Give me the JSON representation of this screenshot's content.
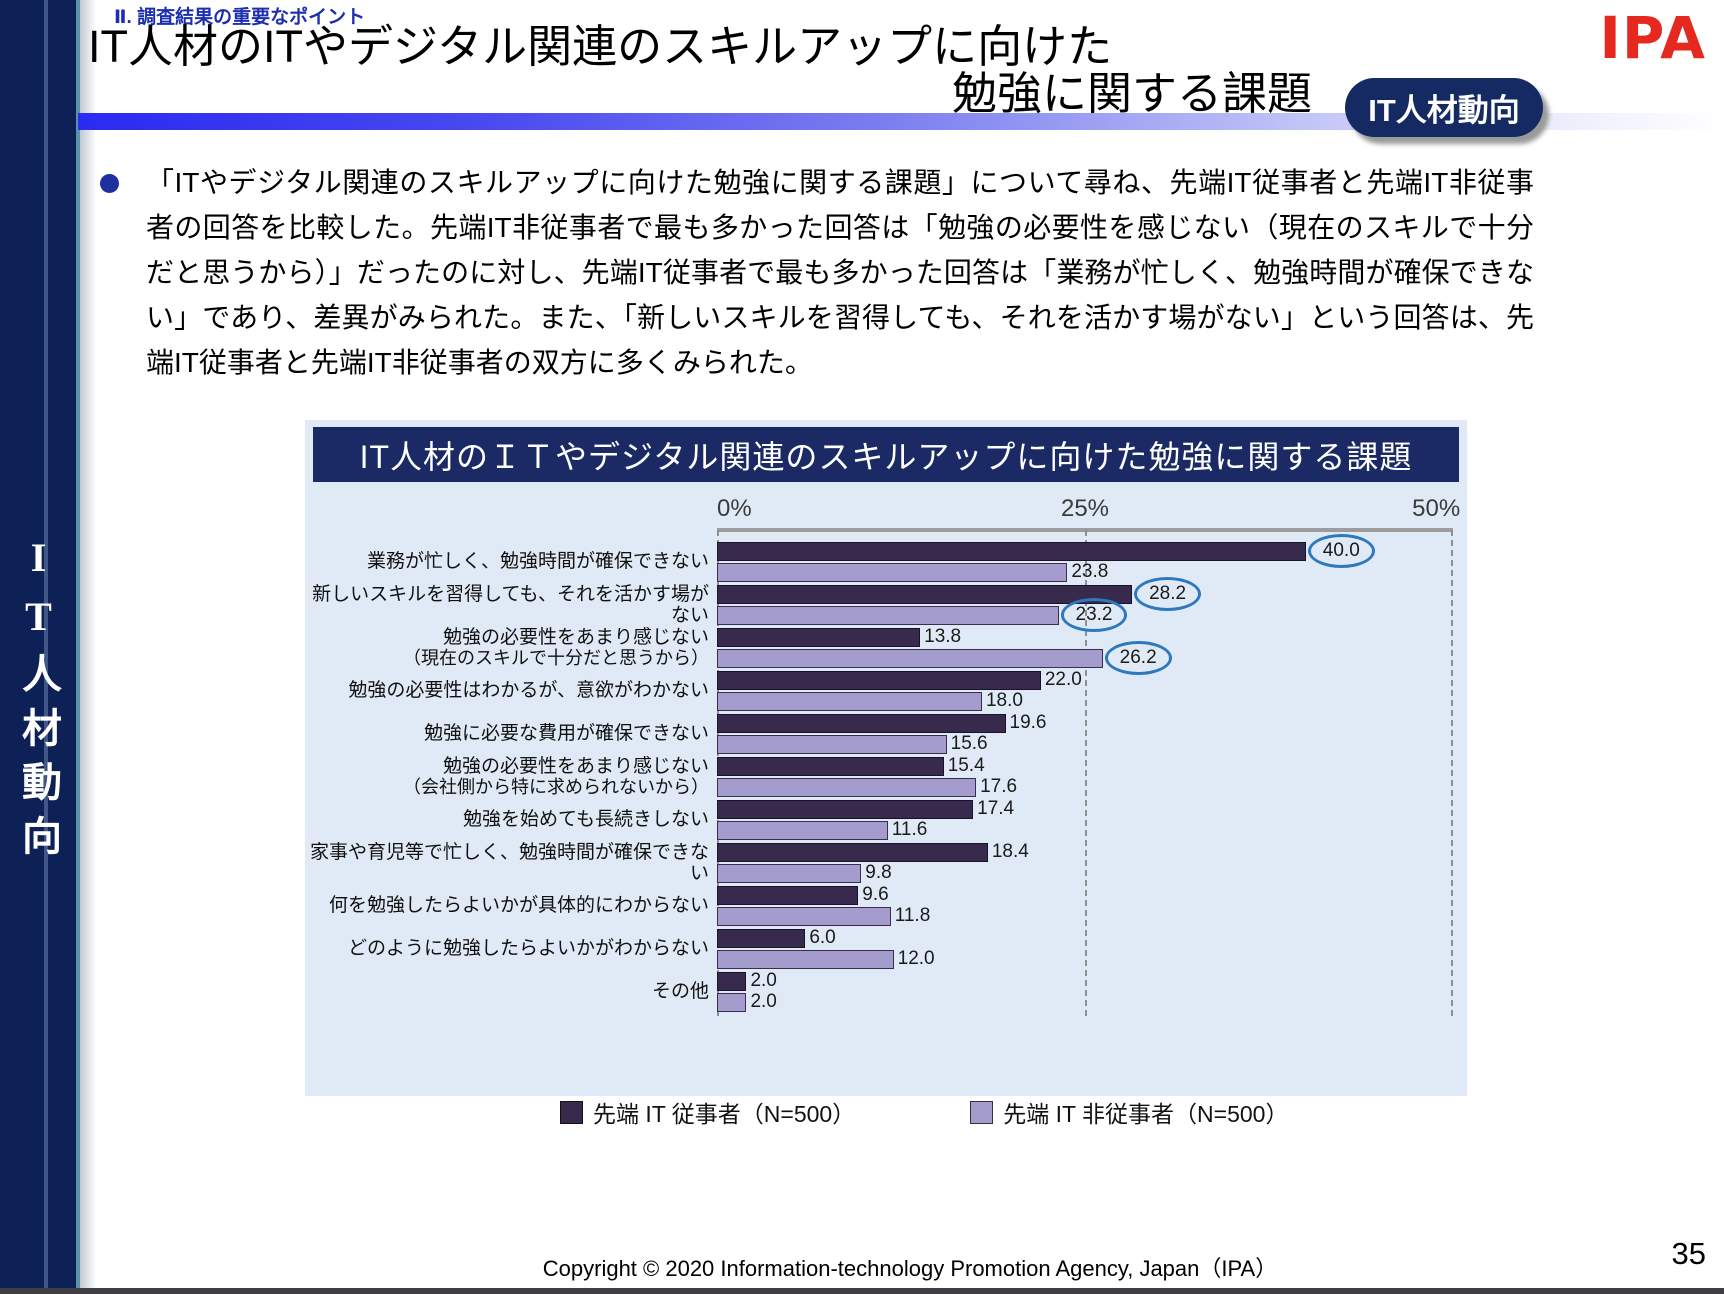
{
  "slide": {
    "eyebrow": "Ⅱ. 調査結果の重要なポイント",
    "title_line1": "IT人材のITやデジタル関連のスキルアップに向けた",
    "title_line2": "勉強に関する課題",
    "badge_label": "IT人材動向",
    "logo_text": "IPA",
    "sidebar_vertical_label": "IT人材動向",
    "bullet_paragraph": "「ITやデジタル関連のスキルアップに向けた勉強に関する課題」について尋ね、先端IT従事者と先端IT非従事者の回答を比較した。先端IT非従事者で最も多かった回答は「勉強の必要性を感じない（現在のスキルで十分だと思うから）」だったのに対し、先端IT従事者で最も多かった回答は「業務が忙しく、勉強時間が確保できない」であり、差異がみられた。また、「新しいスキルを習得しても、それを活かす場がない」という回答は、先端IT従事者と先端IT非従事者の双方に多くみられた。",
    "footer_copyright": "Copyright © 2020 Information-technology Promotion Agency, Japan（IPA）",
    "page_number": "35"
  },
  "colors": {
    "accent_blue": "#1c2fb0",
    "sidebar_navy": "#0d2156",
    "badge_navy": "#152a63",
    "logo_red": "#e6291f",
    "panel_bg": "#dfeaf6",
    "chart_title_bg": "#1b2a64",
    "series_dark": "#372a4d",
    "series_light": "#a49ccd",
    "circle_stroke": "#2e79bd"
  },
  "chart_data": {
    "type": "bar",
    "orientation": "horizontal",
    "title": "IT人材のＩＴやデジタル関連のスキルアップに向けた勉強に関する課題",
    "x_axis": {
      "ticks": [
        "0%",
        "25%",
        "50%"
      ],
      "min": 0,
      "max": 50,
      "unit": "%",
      "gridlines": "dashed"
    },
    "legend": [
      {
        "label": "先端 IT 従事者（N=500）",
        "color": "#372a4d"
      },
      {
        "label": "先端 IT 非従事者（N=500）",
        "color": "#a49ccd"
      }
    ],
    "categories": [
      "業務が忙しく、勉強時間が確保できない",
      "新しいスキルを習得しても、それを活かす場がない",
      "勉強の必要性をあまり感じない（現在のスキルで十分だと思うから）",
      "勉強の必要性はわかるが、意欲がわかない",
      "勉強に必要な費用が確保できない",
      "勉強の必要性をあまり感じない（会社側から特に求められないから）",
      "勉強を始めても長続きしない",
      "家事や育児等で忙しく、勉強時間が確保できない",
      "何を勉強したらよいかが具体的にわからない",
      "どのように勉強したらよいかがわからない",
      "その他"
    ],
    "series": [
      {
        "name": "先端 IT 従事者（N=500）",
        "values": [
          40.0,
          28.2,
          13.8,
          22.0,
          19.6,
          15.4,
          17.4,
          18.4,
          9.6,
          6.0,
          2.0
        ]
      },
      {
        "name": "先端 IT 非従事者（N=500）",
        "values": [
          23.8,
          23.2,
          26.2,
          18.0,
          15.6,
          17.6,
          11.6,
          9.8,
          11.8,
          12.0,
          2.0
        ]
      }
    ],
    "rows": [
      {
        "label_lines": [
          "業務が忙しく、勉強時間が確保できない"
        ],
        "dark": 40.0,
        "light": 23.8,
        "dark_circled": true,
        "light_circled": false
      },
      {
        "label_lines": [
          "新しいスキルを習得しても、それを活かす場がない"
        ],
        "dark": 28.2,
        "light": 23.2,
        "dark_circled": true,
        "light_circled": true
      },
      {
        "label_lines": [
          "勉強の必要性をあまり感じない",
          "（現在のスキルで十分だと思うから）"
        ],
        "dark": 13.8,
        "light": 26.2,
        "dark_circled": false,
        "light_circled": true
      },
      {
        "label_lines": [
          "勉強の必要性はわかるが、意欲がわかない"
        ],
        "dark": 22.0,
        "light": 18.0,
        "dark_circled": false,
        "light_circled": false
      },
      {
        "label_lines": [
          "勉強に必要な費用が確保できない"
        ],
        "dark": 19.6,
        "light": 15.6,
        "dark_circled": false,
        "light_circled": false
      },
      {
        "label_lines": [
          "勉強の必要性をあまり感じない",
          "（会社側から特に求められないから）"
        ],
        "dark": 15.4,
        "light": 17.6,
        "dark_circled": false,
        "light_circled": false
      },
      {
        "label_lines": [
          "勉強を始めても長続きしない"
        ],
        "dark": 17.4,
        "light": 11.6,
        "dark_circled": false,
        "light_circled": false
      },
      {
        "label_lines": [
          "家事や育児等で忙しく、勉強時間が確保できない"
        ],
        "dark": 18.4,
        "light": 9.8,
        "dark_circled": false,
        "light_circled": false
      },
      {
        "label_lines": [
          "何を勉強したらよいかが具体的にわからない"
        ],
        "dark": 9.6,
        "light": 11.8,
        "dark_circled": false,
        "light_circled": false
      },
      {
        "label_lines": [
          "どのように勉強したらよいかがわからない"
        ],
        "dark": 6.0,
        "light": 12.0,
        "dark_circled": false,
        "light_circled": false
      },
      {
        "label_lines": [
          "その他"
        ],
        "dark": 2.0,
        "light": 2.0,
        "dark_circled": false,
        "light_circled": false
      }
    ]
  }
}
